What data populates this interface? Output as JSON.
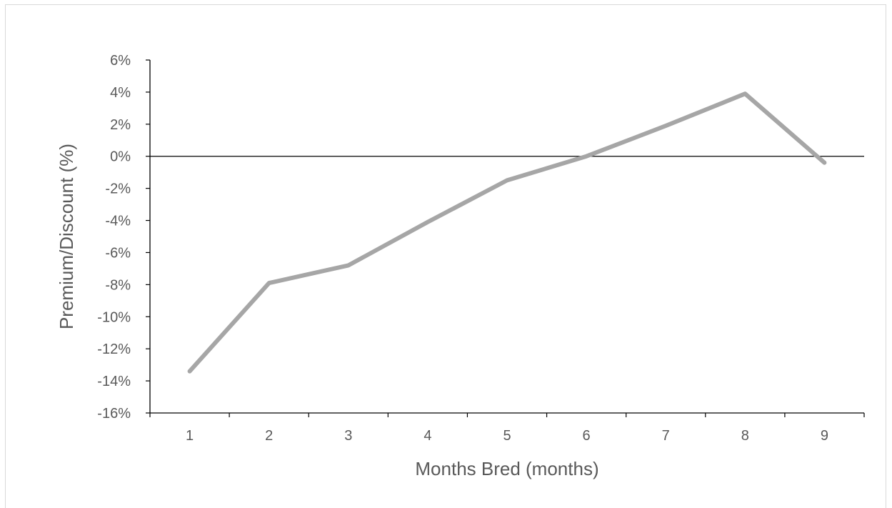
{
  "chart_data": {
    "type": "line",
    "title": "",
    "xlabel": "Months Bred (months)",
    "ylabel": "Premium/Discount (%)",
    "x": [
      1,
      2,
      3,
      4,
      5,
      6,
      7,
      8,
      9
    ],
    "y_tick_labels": [
      "6%",
      "4%",
      "2%",
      "0%",
      "-2%",
      "-4%",
      "-6%",
      "-8%",
      "-10%",
      "-12%",
      "-14%",
      "-16%"
    ],
    "x_tick_labels": [
      "1",
      "2",
      "3",
      "4",
      "5",
      "6",
      "7",
      "8",
      "9"
    ],
    "ylim": [
      -16,
      6
    ],
    "series": [
      {
        "values": [
          -13.4,
          -7.9,
          -6.8,
          -4.1,
          -1.5,
          0.0,
          1.9,
          3.9,
          -0.4
        ]
      }
    ],
    "grid": false,
    "legend": "none",
    "line_color": "#a6a6a6",
    "axis_color": "#000000"
  }
}
